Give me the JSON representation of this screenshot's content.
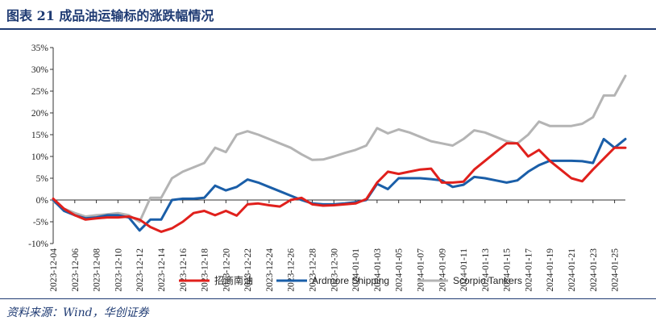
{
  "header": {
    "title": "图表 21  成品油运输标的涨跌幅情况"
  },
  "footer": {
    "source": "资料来源：Wind，华创证券"
  },
  "chart_data": {
    "type": "line",
    "title": "",
    "xlabel": "",
    "ylabel": "",
    "ylim": [
      -10,
      35
    ],
    "y_ticks": [
      "35%",
      "30%",
      "25%",
      "20%",
      "15%",
      "10%",
      "5%",
      "0%",
      "-5%",
      "-10%"
    ],
    "x_tick_labels": [
      "2023-12-04",
      "2023-12-06",
      "2023-12-08",
      "2023-12-10",
      "2023-12-12",
      "2023-12-14",
      "2023-12-16",
      "2023-12-18",
      "2023-12-20",
      "2023-12-22",
      "2023-12-24",
      "2023-12-26",
      "2023-12-28",
      "2023-12-30",
      "2024-01-01",
      "2024-01-03",
      "2024-01-05",
      "2024-01-07",
      "2024-01-09",
      "2024-01-11",
      "2024-01-13",
      "2024-01-15",
      "2024-01-17",
      "2024-01-19",
      "2024-01-21",
      "2024-01-23",
      "2024-01-25"
    ],
    "x_range": [
      "2023-12-04",
      "2024-01-26"
    ],
    "grid": false,
    "legend_position": "bottom",
    "series": [
      {
        "name": "招商南油",
        "color": "#e0201c",
        "points": [
          [
            "2023-12-04",
            0.3
          ],
          [
            "2023-12-05",
            -2.0
          ],
          [
            "2023-12-06",
            -3.5
          ],
          [
            "2023-12-07",
            -4.5
          ],
          [
            "2023-12-08",
            -4.2
          ],
          [
            "2023-12-09",
            -4.0
          ],
          [
            "2023-12-10",
            -4.0
          ],
          [
            "2023-12-11",
            -3.8
          ],
          [
            "2023-12-12",
            -4.5
          ],
          [
            "2023-12-13",
            -6.2
          ],
          [
            "2023-12-14",
            -7.3
          ],
          [
            "2023-12-15",
            -6.5
          ],
          [
            "2023-12-16",
            -5.0
          ],
          [
            "2023-12-17",
            -3.0
          ],
          [
            "2023-12-18",
            -2.5
          ],
          [
            "2023-12-19",
            -3.5
          ],
          [
            "2023-12-20",
            -2.5
          ],
          [
            "2023-12-21",
            -3.6
          ],
          [
            "2023-12-22",
            -1.0
          ],
          [
            "2023-12-23",
            -0.8
          ],
          [
            "2023-12-24",
            -1.2
          ],
          [
            "2023-12-25",
            -1.5
          ],
          [
            "2023-12-26",
            0.0
          ],
          [
            "2023-12-27",
            0.5
          ],
          [
            "2023-12-28",
            -1.0
          ],
          [
            "2023-12-29",
            -1.3
          ],
          [
            "2023-12-30",
            -1.2
          ],
          [
            "2023-12-31",
            -1.0
          ],
          [
            "2024-01-01",
            -0.8
          ],
          [
            "2024-01-02",
            0.2
          ],
          [
            "2024-01-03",
            4.0
          ],
          [
            "2024-01-04",
            6.5
          ],
          [
            "2024-01-05",
            6.0
          ],
          [
            "2024-01-06",
            6.5
          ],
          [
            "2024-01-07",
            7.0
          ],
          [
            "2024-01-08",
            7.2
          ],
          [
            "2024-01-09",
            4.0
          ],
          [
            "2024-01-10",
            4.0
          ],
          [
            "2024-01-11",
            4.2
          ],
          [
            "2024-01-12",
            7.0
          ],
          [
            "2024-01-13",
            9.0
          ],
          [
            "2024-01-14",
            11.0
          ],
          [
            "2024-01-15",
            13.0
          ],
          [
            "2024-01-16",
            13.0
          ],
          [
            "2024-01-17",
            10.0
          ],
          [
            "2024-01-18",
            11.5
          ],
          [
            "2024-01-19",
            9.0
          ],
          [
            "2024-01-20",
            7.0
          ],
          [
            "2024-01-21",
            5.0
          ],
          [
            "2024-01-22",
            4.3
          ],
          [
            "2024-01-23",
            7.0
          ],
          [
            "2024-01-24",
            9.5
          ],
          [
            "2024-01-25",
            12.0
          ],
          [
            "2024-01-26",
            12.0
          ]
        ]
      },
      {
        "name": "Ardmore Shipping",
        "color": "#1a5ea8",
        "points": [
          [
            "2023-12-04",
            0.0
          ],
          [
            "2023-12-05",
            -2.5
          ],
          [
            "2023-12-06",
            -3.5
          ],
          [
            "2023-12-07",
            -4.2
          ],
          [
            "2023-12-08",
            -4.0
          ],
          [
            "2023-12-09",
            -3.5
          ],
          [
            "2023-12-10",
            -3.5
          ],
          [
            "2023-12-11",
            -4.0
          ],
          [
            "2023-12-12",
            -7.0
          ],
          [
            "2023-12-13",
            -4.5
          ],
          [
            "2023-12-14",
            -4.5
          ],
          [
            "2023-12-15",
            0.0
          ],
          [
            "2023-12-16",
            0.3
          ],
          [
            "2023-12-17",
            0.3
          ],
          [
            "2023-12-18",
            0.5
          ],
          [
            "2023-12-19",
            3.3
          ],
          [
            "2023-12-20",
            2.2
          ],
          [
            "2023-12-21",
            3.0
          ],
          [
            "2023-12-22",
            4.7
          ],
          [
            "2023-12-23",
            4.0
          ],
          [
            "2023-12-24",
            3.0
          ],
          [
            "2023-12-25",
            2.0
          ],
          [
            "2023-12-26",
            1.0
          ],
          [
            "2023-12-27",
            0.0
          ],
          [
            "2023-12-28",
            -0.8
          ],
          [
            "2023-12-29",
            -1.0
          ],
          [
            "2023-12-30",
            -1.0
          ],
          [
            "2023-12-31",
            -0.8
          ],
          [
            "2024-01-01",
            -0.5
          ],
          [
            "2024-01-02",
            0.0
          ],
          [
            "2024-01-03",
            3.7
          ],
          [
            "2024-01-04",
            2.5
          ],
          [
            "2024-01-05",
            5.0
          ],
          [
            "2024-01-06",
            5.0
          ],
          [
            "2024-01-07",
            5.0
          ],
          [
            "2024-01-08",
            4.8
          ],
          [
            "2024-01-09",
            4.5
          ],
          [
            "2024-01-10",
            3.0
          ],
          [
            "2024-01-11",
            3.5
          ],
          [
            "2024-01-12",
            5.3
          ],
          [
            "2024-01-13",
            5.0
          ],
          [
            "2024-01-14",
            4.5
          ],
          [
            "2024-01-15",
            4.0
          ],
          [
            "2024-01-16",
            4.5
          ],
          [
            "2024-01-17",
            6.5
          ],
          [
            "2024-01-18",
            8.0
          ],
          [
            "2024-01-19",
            9.0
          ],
          [
            "2024-01-20",
            9.0
          ],
          [
            "2024-01-21",
            9.0
          ],
          [
            "2024-01-22",
            8.9
          ],
          [
            "2024-01-23",
            8.5
          ],
          [
            "2024-01-24",
            14.0
          ],
          [
            "2024-01-25",
            12.0
          ],
          [
            "2024-01-26",
            14.0
          ]
        ]
      },
      {
        "name": "Scorpio Tankers",
        "color": "#b4b4b4",
        "points": [
          [
            "2023-12-04",
            -0.3
          ],
          [
            "2023-12-05",
            -2.0
          ],
          [
            "2023-12-06",
            -3.0
          ],
          [
            "2023-12-07",
            -3.8
          ],
          [
            "2023-12-08",
            -3.5
          ],
          [
            "2023-12-09",
            -3.3
          ],
          [
            "2023-12-10",
            -3.0
          ],
          [
            "2023-12-11",
            -3.5
          ],
          [
            "2023-12-12",
            -5.0
          ],
          [
            "2023-12-13",
            0.5
          ],
          [
            "2023-12-14",
            0.5
          ],
          [
            "2023-12-15",
            5.0
          ],
          [
            "2023-12-16",
            6.5
          ],
          [
            "2023-12-17",
            7.5
          ],
          [
            "2023-12-18",
            8.5
          ],
          [
            "2023-12-19",
            12.0
          ],
          [
            "2023-12-20",
            11.0
          ],
          [
            "2023-12-21",
            15.0
          ],
          [
            "2023-12-22",
            15.8
          ],
          [
            "2023-12-23",
            15.0
          ],
          [
            "2023-12-24",
            14.0
          ],
          [
            "2023-12-25",
            13.0
          ],
          [
            "2023-12-26",
            12.0
          ],
          [
            "2023-12-27",
            10.5
          ],
          [
            "2023-12-28",
            9.2
          ],
          [
            "2023-12-29",
            9.3
          ],
          [
            "2023-12-30",
            10.0
          ],
          [
            "2023-12-31",
            10.8
          ],
          [
            "2024-01-01",
            11.5
          ],
          [
            "2024-01-02",
            12.5
          ],
          [
            "2024-01-03",
            16.5
          ],
          [
            "2024-01-04",
            15.3
          ],
          [
            "2024-01-05",
            16.2
          ],
          [
            "2024-01-06",
            15.5
          ],
          [
            "2024-01-07",
            14.5
          ],
          [
            "2024-01-08",
            13.5
          ],
          [
            "2024-01-09",
            13.0
          ],
          [
            "2024-01-10",
            12.5
          ],
          [
            "2024-01-11",
            14.0
          ],
          [
            "2024-01-12",
            16.0
          ],
          [
            "2024-01-13",
            15.5
          ],
          [
            "2024-01-14",
            14.5
          ],
          [
            "2024-01-15",
            13.5
          ],
          [
            "2024-01-16",
            13.0
          ],
          [
            "2024-01-17",
            15.0
          ],
          [
            "2024-01-18",
            18.0
          ],
          [
            "2024-01-19",
            17.0
          ],
          [
            "2024-01-20",
            17.0
          ],
          [
            "2024-01-21",
            17.0
          ],
          [
            "2024-01-22",
            17.5
          ],
          [
            "2024-01-23",
            19.0
          ],
          [
            "2024-01-24",
            24.0
          ],
          [
            "2024-01-25",
            24.0
          ],
          [
            "2024-01-26",
            28.5
          ]
        ]
      }
    ]
  }
}
